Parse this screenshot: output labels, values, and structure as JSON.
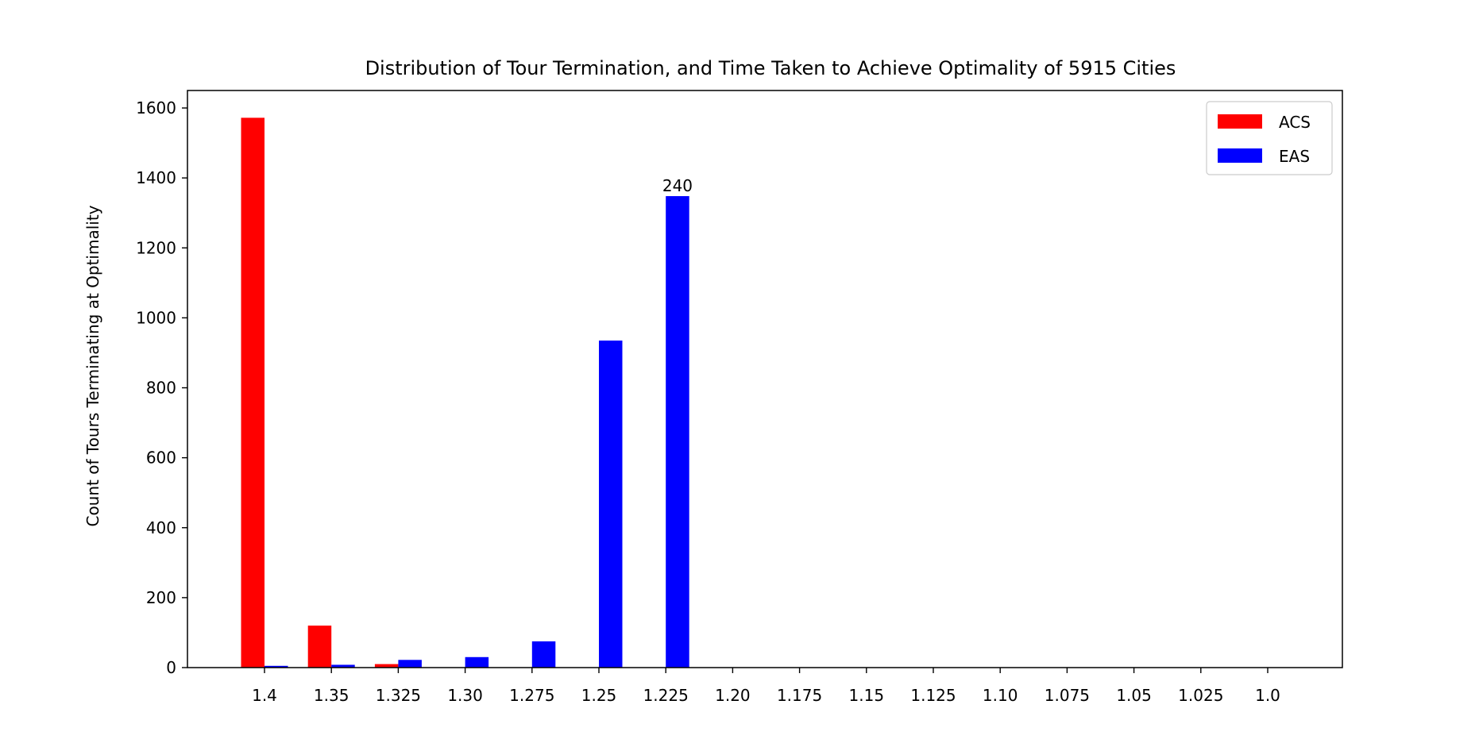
{
  "chart_data": {
    "type": "bar",
    "title": "Distribution of Tour Termination, and Time Taken to Achieve Optimality of 5915 Cities",
    "xlabel": "",
    "ylabel": "Count of Tours Terminating at Optimality",
    "categories": [
      "1.4",
      "1.35",
      "1.325",
      "1.30",
      "1.275",
      "1.25",
      "1.225",
      "1.20",
      "1.175",
      "1.15",
      "1.125",
      "1.10",
      "1.075",
      "1.05",
      "1.025",
      "1.0"
    ],
    "series": [
      {
        "name": "ACS",
        "color": "#ff0000",
        "values": [
          1572,
          120,
          10,
          0,
          0,
          0,
          0,
          0,
          0,
          0,
          0,
          0,
          0,
          0,
          0,
          0
        ]
      },
      {
        "name": "EAS",
        "color": "#0000ff",
        "values": [
          5,
          8,
          22,
          30,
          75,
          935,
          1348,
          0,
          0,
          0,
          0,
          0,
          0,
          0,
          0,
          0
        ]
      }
    ],
    "ylim": [
      0,
      1650
    ],
    "yticks": [
      "0",
      "200",
      "400",
      "600",
      "800",
      "1000",
      "1200",
      "1400",
      "1600"
    ],
    "grid": false,
    "legend_position": "top-right",
    "annotations": [
      {
        "text": "240",
        "category": "1.225",
        "series": "EAS"
      }
    ]
  }
}
